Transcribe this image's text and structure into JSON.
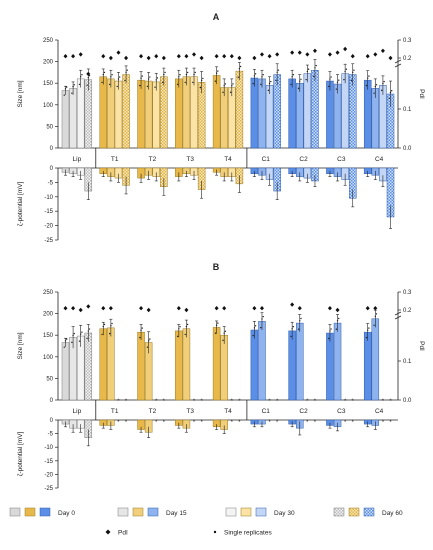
{
  "chart_data": [
    {
      "type": "bar",
      "panel": "A",
      "title": "A",
      "categories": [
        "Lip",
        "T1",
        "T2",
        "T3",
        "T4",
        "C1",
        "C2",
        "C3",
        "C4"
      ],
      "days": [
        "Day 0",
        "Day 15",
        "Day 30",
        "Day 60"
      ],
      "size": {
        "ylabel": "Size [nm]",
        "ylim": [
          0,
          250
        ],
        "yticks": [
          0,
          50,
          100,
          150,
          200,
          250
        ],
        "values": [
          [
            133,
            138,
            160,
            158
          ],
          [
            165,
            160,
            155,
            170
          ],
          [
            157,
            155,
            153,
            165
          ],
          [
            160,
            165,
            165,
            152
          ],
          [
            168,
            140,
            140,
            178
          ],
          [
            162,
            160,
            145,
            170
          ],
          [
            160,
            150,
            172,
            180
          ],
          [
            155,
            148,
            172,
            170
          ],
          [
            157,
            138,
            145,
            125
          ]
        ],
        "errors": [
          [
            10,
            15,
            20,
            25
          ],
          [
            18,
            20,
            20,
            20
          ],
          [
            20,
            20,
            20,
            20
          ],
          [
            20,
            20,
            20,
            25
          ],
          [
            20,
            20,
            20,
            20
          ],
          [
            20,
            20,
            20,
            25
          ],
          [
            20,
            20,
            20,
            25
          ],
          [
            22,
            22,
            22,
            25
          ],
          [
            22,
            22,
            22,
            30
          ]
        ]
      },
      "pdi": {
        "ylabel": "PdI",
        "ylim": [
          0,
          0.3
        ],
        "yticks": [
          0,
          0.1,
          0.2,
          0.3
        ],
        "values": [
          [
            0.21,
            0.21,
            0.22,
            0.19
          ],
          [
            0.21,
            0.2,
            0.23,
            0.2
          ],
          [
            0.21,
            0.2,
            0.21,
            0.2
          ],
          [
            0.21,
            0.21,
            0.22,
            0.2
          ],
          [
            0.21,
            0.21,
            0.21,
            0.2
          ],
          [
            0.2,
            0.22,
            0.21,
            0.22
          ],
          [
            0.23,
            0.23,
            0.22,
            0.24
          ],
          [
            0.22,
            0.23,
            0.25,
            0.21
          ],
          [
            0.21,
            0.22,
            0.24,
            0.2
          ]
        ]
      },
      "zeta": {
        "ylabel": "ζ-potential [mV]",
        "ylim": [
          -25,
          0
        ],
        "yticks": [
          0,
          -5,
          -10,
          -15,
          -20,
          -25
        ],
        "values": [
          [
            -1.5,
            -2,
            -2.5,
            -8
          ],
          [
            -2,
            -3,
            -3.5,
            -6
          ],
          [
            -3.5,
            -2.5,
            -3,
            -6.5
          ],
          [
            -3,
            -2,
            -2.5,
            -7.5
          ],
          [
            -1.5,
            -3,
            -3,
            -5.5
          ],
          [
            -2,
            -2.5,
            -4,
            -8
          ],
          [
            -2,
            -3,
            -3.5,
            -4.5
          ],
          [
            -2,
            -3,
            -4,
            -10.5
          ],
          [
            -2,
            -2.5,
            -4.5,
            -17
          ]
        ],
        "errors": [
          [
            1,
            1,
            1.5,
            3
          ],
          [
            1,
            1.5,
            1.5,
            3
          ],
          [
            1.5,
            1.5,
            1.5,
            3
          ],
          [
            1.5,
            1,
            1.5,
            3
          ],
          [
            1,
            1.5,
            1.5,
            3
          ],
          [
            1,
            1.5,
            2,
            3
          ],
          [
            1,
            1.5,
            1.5,
            2
          ],
          [
            1,
            1.5,
            2,
            3
          ],
          [
            1,
            1.5,
            2,
            4
          ]
        ]
      }
    },
    {
      "type": "bar",
      "panel": "B",
      "title": "B",
      "categories": [
        "Lip",
        "T1",
        "T2",
        "T3",
        "T4",
        "C1",
        "C2",
        "C3",
        "C4"
      ],
      "days": [
        "Day 0",
        "Day 15",
        "Day 30",
        "Day 60"
      ],
      "missing_marker": "*",
      "size": {
        "ylabel": "Size [nm]",
        "ylim": [
          0,
          250
        ],
        "yticks": [
          0,
          50,
          100,
          150,
          200,
          250
        ],
        "values": [
          [
            133,
            145,
            148,
            155
          ],
          [
            165,
            167,
            null,
            null
          ],
          [
            157,
            133,
            null,
            null
          ],
          [
            160,
            165,
            null,
            null
          ],
          [
            168,
            150,
            null,
            null
          ],
          [
            162,
            182,
            null,
            null
          ],
          [
            160,
            178,
            null,
            null
          ],
          [
            155,
            178,
            null,
            null
          ],
          [
            157,
            188,
            null,
            null
          ]
        ],
        "errors": [
          [
            10,
            25,
            25,
            20
          ],
          [
            15,
            20,
            0,
            0
          ],
          [
            18,
            25,
            0,
            0
          ],
          [
            15,
            20,
            0,
            0
          ],
          [
            15,
            20,
            0,
            0
          ],
          [
            20,
            20,
            0,
            0
          ],
          [
            20,
            20,
            0,
            0
          ],
          [
            20,
            20,
            0,
            0
          ],
          [
            20,
            20,
            0,
            0
          ]
        ]
      },
      "pdi": {
        "ylabel": "PdI",
        "ylim": [
          0,
          0.3
        ],
        "yticks": [
          0,
          0.1,
          0.2,
          0.3
        ],
        "values": [
          [
            0.21,
            0.21,
            0.2,
            0.22
          ],
          [
            0.21,
            0.21,
            null,
            null
          ],
          [
            0.21,
            0.2,
            null,
            null
          ],
          [
            0.21,
            0.2,
            null,
            null
          ],
          [
            0.21,
            0.21,
            null,
            null
          ],
          [
            0.21,
            0.21,
            null,
            null
          ],
          [
            0.23,
            0.21,
            null,
            null
          ],
          [
            0.21,
            0.2,
            null,
            null
          ],
          [
            0.21,
            0.21,
            null,
            null
          ]
        ]
      },
      "zeta": {
        "ylabel": "ζ-potential [mV]",
        "ylim": [
          -25,
          0
        ],
        "yticks": [
          0,
          -5,
          -10,
          -15,
          -20,
          -25
        ],
        "values": [
          [
            -1.5,
            -3,
            -3,
            -6.5
          ],
          [
            -2,
            -2,
            null,
            null
          ],
          [
            -3.5,
            -4.5,
            null,
            null
          ],
          [
            -2,
            -3,
            null,
            null
          ],
          [
            -2.5,
            -3.5,
            null,
            null
          ],
          [
            -1.5,
            -1.5,
            null,
            null
          ],
          [
            -1.5,
            -3,
            null,
            null
          ],
          [
            -2,
            -2.5,
            null,
            null
          ],
          [
            -1.5,
            -2,
            null,
            null
          ]
        ],
        "errors": [
          [
            1,
            1.5,
            1.5,
            3
          ],
          [
            1,
            1.5,
            0,
            0
          ],
          [
            1,
            2,
            0,
            0
          ],
          [
            1,
            1.5,
            0,
            0
          ],
          [
            1,
            1.5,
            0,
            0
          ],
          [
            1,
            1,
            0,
            0
          ],
          [
            1,
            2.5,
            0,
            0
          ],
          [
            1,
            1.5,
            0,
            0
          ],
          [
            1,
            1.5,
            0,
            0
          ]
        ]
      }
    }
  ],
  "colors": {
    "lip": "#d9d9d9",
    "trans": "#e8b94a",
    "cat": "#5b8ee6",
    "lip_edge": "#7a7a7a",
    "trans_edge": "#9a7a20",
    "cat_edge": "#2f5ca8"
  },
  "legend": {
    "groups": [
      {
        "label": "Day 0",
        "day": 0
      },
      {
        "label": "Day 15",
        "day": 1
      },
      {
        "label": "Day 30",
        "day": 2
      },
      {
        "label": "Day 60",
        "day": 3
      }
    ],
    "pdi_label": "PdI",
    "replicates_label": "Single replicates"
  }
}
